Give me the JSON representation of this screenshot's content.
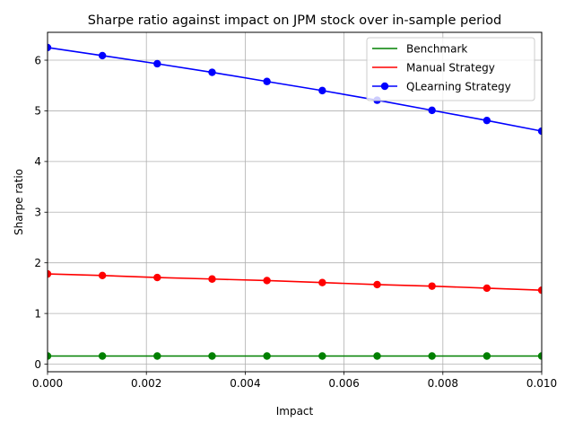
{
  "chart_data": {
    "type": "line",
    "title": "Sharpe ratio against impact on JPM stock over in-sample period",
    "xlabel": "Impact",
    "ylabel": "Sharpe ratio",
    "xlim": [
      0.0,
      0.01
    ],
    "ylim": [
      -0.15,
      6.55
    ],
    "grid": true,
    "legend_position": "upper right",
    "xticks": [
      0.0,
      0.002,
      0.004,
      0.006,
      0.008,
      0.01
    ],
    "xtick_labels": [
      "0.000",
      "0.002",
      "0.004",
      "0.006",
      "0.008",
      "0.010"
    ],
    "yticks": [
      0,
      1,
      2,
      3,
      4,
      5,
      6
    ],
    "ytick_labels": [
      "0",
      "1",
      "2",
      "3",
      "4",
      "5",
      "6"
    ],
    "x": [
      0.0,
      0.00111,
      0.00222,
      0.00333,
      0.00444,
      0.00556,
      0.00667,
      0.00778,
      0.00889,
      0.01
    ],
    "series": [
      {
        "name": "Benchmark",
        "color": "#008000",
        "marker": "circle",
        "values": [
          0.16,
          0.16,
          0.16,
          0.16,
          0.16,
          0.16,
          0.16,
          0.16,
          0.16,
          0.16
        ]
      },
      {
        "name": "Manual Strategy",
        "color": "#ff0000",
        "marker": "circle",
        "values": [
          1.78,
          1.75,
          1.71,
          1.68,
          1.65,
          1.61,
          1.57,
          1.54,
          1.5,
          1.46
        ]
      },
      {
        "name": "QLearning Strategy",
        "color": "#0000ff",
        "marker": "circle",
        "values": [
          6.25,
          6.09,
          5.93,
          5.76,
          5.58,
          5.4,
          5.21,
          5.01,
          4.81,
          4.6
        ]
      }
    ]
  }
}
